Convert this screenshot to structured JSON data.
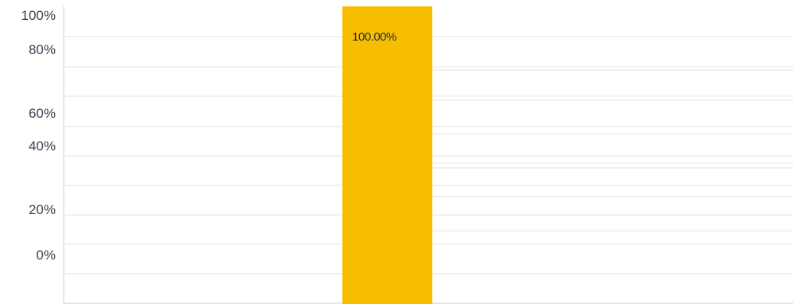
{
  "chart_data": {
    "type": "bar",
    "title": "",
    "xlabel": "",
    "ylabel": "",
    "categories": [
      ""
    ],
    "values": [
      100
    ],
    "data_labels": [
      "100.00%"
    ],
    "y_tick_labels": [
      "100%",
      "80%",
      "60%",
      "40%",
      "20%",
      "0%"
    ],
    "ylim": [
      0,
      100
    ],
    "grid": true,
    "legend": "none",
    "colors": {
      "bar": "#F7BE00",
      "grid": "#e3e3e3",
      "axis": "#cfcfcf",
      "tick_text": "#3a4250",
      "label_text": "#1e2a44"
    }
  }
}
